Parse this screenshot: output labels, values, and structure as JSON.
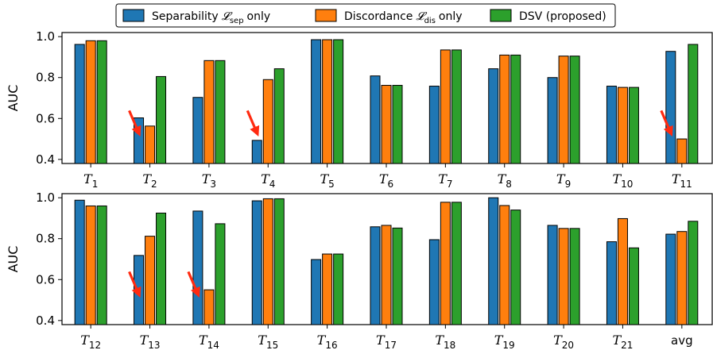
{
  "chart_data": {
    "type": "bar",
    "legend": {
      "placement": "top-center",
      "entries": [
        {
          "name": "Separability",
          "symbol": "𝓛",
          "subscript": "sep",
          "suffix": "only",
          "color": "#1f77b4"
        },
        {
          "name": "Discordance",
          "symbol": "𝓛",
          "subscript": "dis",
          "suffix": "only",
          "color": "#ff7f0e"
        },
        {
          "name": "DSV (proposed)",
          "symbol": "",
          "subscript": "",
          "suffix": "",
          "color": "#2ca02c"
        }
      ]
    },
    "panels": [
      {
        "ylabel": "AUC",
        "ylim": [
          0.38,
          1.02
        ],
        "yticks": [
          "0.4",
          "0.6",
          "0.8",
          "1.0"
        ],
        "categories": [
          {
            "base": "T",
            "sub": "1"
          },
          {
            "base": "T",
            "sub": "2"
          },
          {
            "base": "T",
            "sub": "3"
          },
          {
            "base": "T",
            "sub": "4"
          },
          {
            "base": "T",
            "sub": "5"
          },
          {
            "base": "T",
            "sub": "6"
          },
          {
            "base": "T",
            "sub": "7"
          },
          {
            "base": "T",
            "sub": "8"
          },
          {
            "base": "T",
            "sub": "9"
          },
          {
            "base": "T",
            "sub": "10"
          },
          {
            "base": "T",
            "sub": "11"
          }
        ],
        "series": [
          {
            "name": "Separability only",
            "values": [
              0.962,
              0.603,
              0.703,
              0.493,
              0.985,
              0.808,
              0.758,
              0.843,
              0.8,
              0.758,
              0.928
            ]
          },
          {
            "name": "Discordance only",
            "values": [
              0.98,
              0.563,
              0.883,
              0.79,
              0.985,
              0.762,
              0.935,
              0.91,
              0.905,
              0.752,
              0.5
            ]
          },
          {
            "name": "DSV (proposed)",
            "values": [
              0.98,
              0.805,
              0.883,
              0.843,
              0.985,
              0.762,
              0.935,
              0.91,
              0.905,
              0.752,
              0.962
            ]
          }
        ],
        "arrows_at": [
          1,
          3,
          10
        ]
      },
      {
        "ylabel": "AUC",
        "ylim": [
          0.38,
          1.02
        ],
        "yticks": [
          "0.4",
          "0.6",
          "0.8",
          "1.0"
        ],
        "categories": [
          {
            "base": "T",
            "sub": "12"
          },
          {
            "base": "T",
            "sub": "13"
          },
          {
            "base": "T",
            "sub": "14"
          },
          {
            "base": "T",
            "sub": "15"
          },
          {
            "base": "T",
            "sub": "16"
          },
          {
            "base": "T",
            "sub": "17"
          },
          {
            "base": "T",
            "sub": "18"
          },
          {
            "base": "T",
            "sub": "19"
          },
          {
            "base": "T",
            "sub": "20"
          },
          {
            "base": "T",
            "sub": "21"
          },
          {
            "base": "avg",
            "sub": ""
          }
        ],
        "series": [
          {
            "name": "Separability only",
            "values": [
              0.988,
              0.718,
              0.935,
              0.985,
              0.698,
              0.858,
              0.795,
              1.0,
              0.865,
              0.785,
              0.822
            ]
          },
          {
            "name": "Discordance only",
            "values": [
              0.96,
              0.812,
              0.55,
              0.995,
              0.725,
              0.865,
              0.978,
              0.962,
              0.85,
              0.898,
              0.835
            ]
          },
          {
            "name": "DSV (proposed)",
            "values": [
              0.96,
              0.925,
              0.873,
              0.995,
              0.725,
              0.852,
              0.978,
              0.94,
              0.85,
              0.755,
              0.885
            ]
          }
        ],
        "arrows_at": [
          1,
          2
        ]
      }
    ],
    "colors": {
      "series": [
        "#1f77b4",
        "#ff7f0e",
        "#2ca02c"
      ],
      "arrow": "#ff2a10"
    }
  }
}
